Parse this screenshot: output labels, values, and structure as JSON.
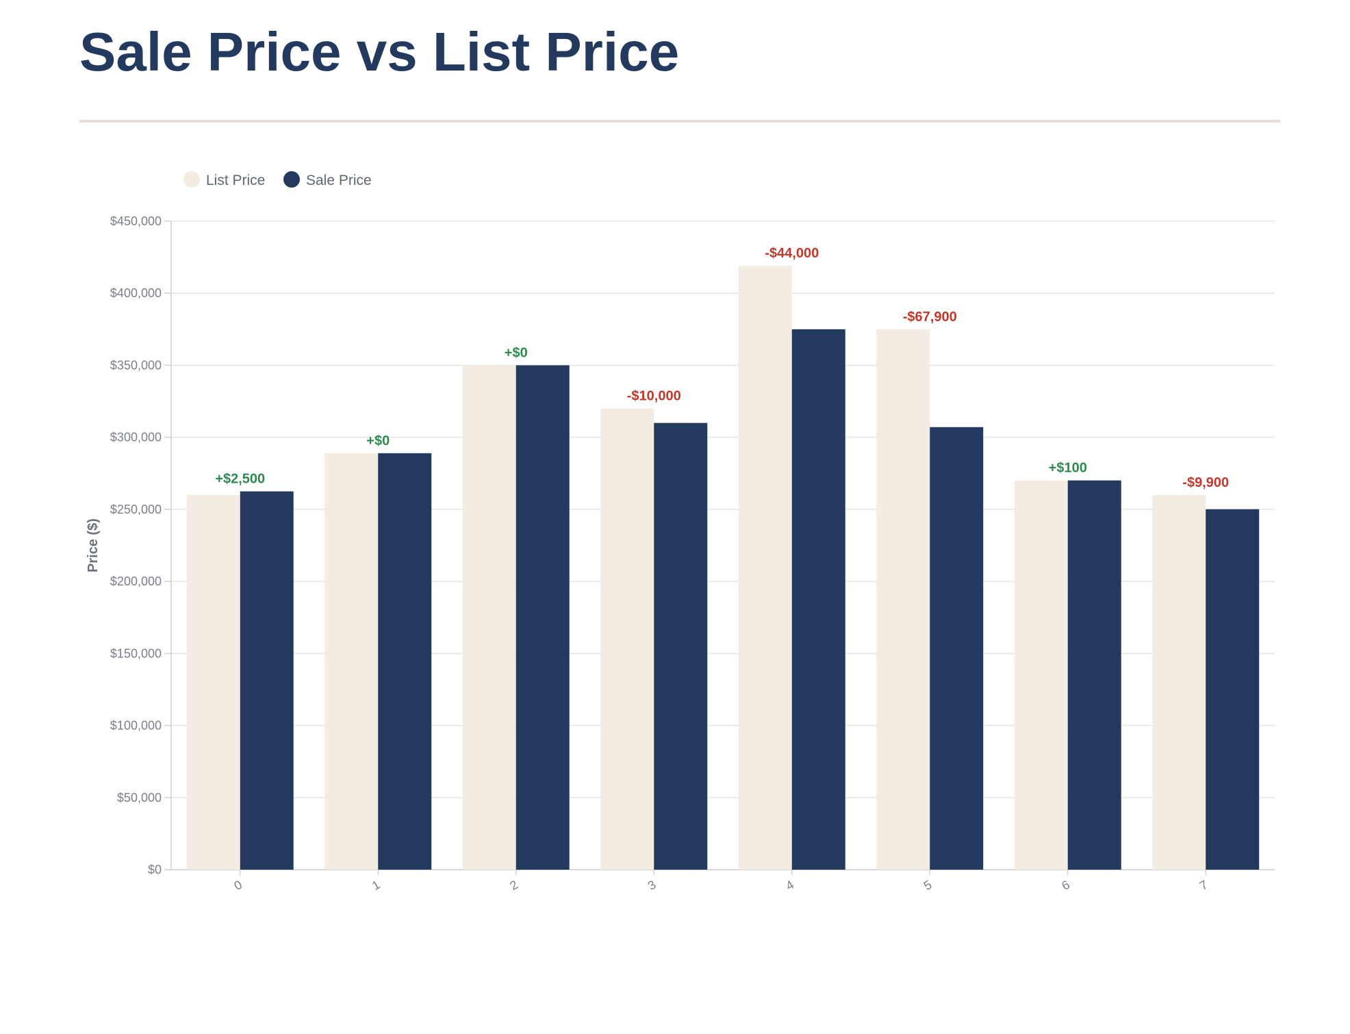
{
  "page": {
    "title": "Sale Price vs List Price"
  },
  "colors": {
    "list_price": "#f3ece2",
    "sale_price": "#233a5e",
    "positive": "#2e8b4f",
    "negative": "#c0392b",
    "grid": "#e5e5e5",
    "axis": "#cfcfcf"
  },
  "chart_data": {
    "type": "bar",
    "title": "",
    "xlabel": "",
    "ylabel": "Price ($)",
    "ylim": [
      0,
      450000
    ],
    "y_ticks": [
      0,
      50000,
      100000,
      150000,
      200000,
      250000,
      300000,
      350000,
      400000,
      450000
    ],
    "y_tick_labels": [
      "$0",
      "$50,000",
      "$100,000",
      "$150,000",
      "$200,000",
      "$250,000",
      "$300,000",
      "$350,000",
      "$400,000",
      "$450,000"
    ],
    "categories": [
      "0",
      "1",
      "2",
      "3",
      "4",
      "5",
      "6",
      "7"
    ],
    "grid": true,
    "legend_position": "top-left",
    "series": [
      {
        "name": "List Price",
        "values": [
          260000,
          289000,
          350000,
          320000,
          419000,
          375000,
          270000,
          260000
        ]
      },
      {
        "name": "Sale Price",
        "values": [
          262500,
          289000,
          350000,
          310000,
          375000,
          307100,
          270100,
          250100
        ]
      }
    ],
    "annotations": [
      "+$2,500",
      "+$0",
      "+$0",
      "-$10,000",
      "-$44,000",
      "-$67,900",
      "+$100",
      "-$9,900"
    ]
  }
}
